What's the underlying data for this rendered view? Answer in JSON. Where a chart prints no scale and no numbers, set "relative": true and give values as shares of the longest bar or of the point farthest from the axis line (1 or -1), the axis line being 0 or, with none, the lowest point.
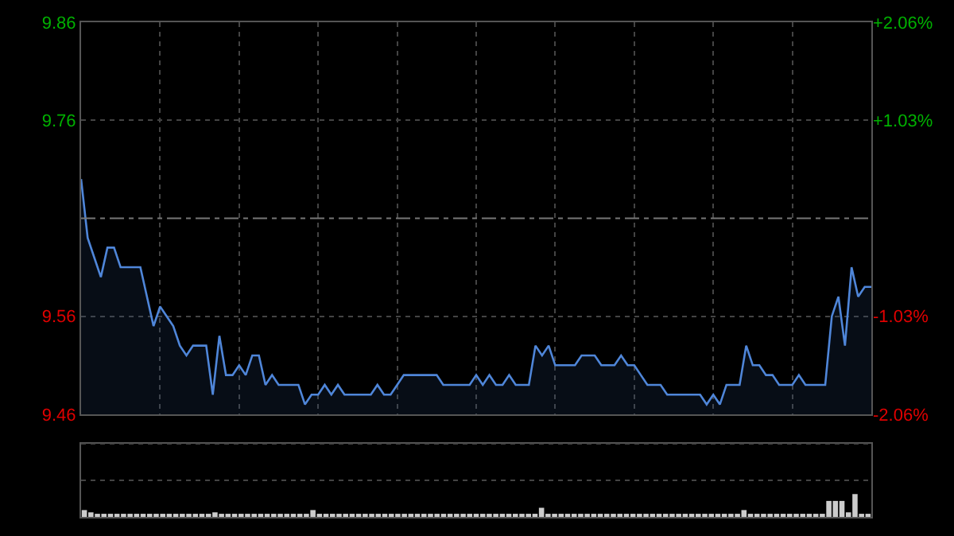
{
  "chart_data": [
    {
      "type": "area",
      "categories": [
        null,
        null,
        null,
        null,
        null,
        null,
        null,
        null,
        null,
        null,
        null,
        null,
        null,
        null,
        null,
        null,
        null,
        null,
        null,
        null,
        null,
        null,
        null,
        null,
        null,
        null,
        null,
        null,
        null,
        null,
        null,
        null,
        null,
        null,
        null,
        null,
        null,
        null,
        null,
        null,
        null,
        null,
        null,
        null,
        null,
        null,
        null,
        null,
        null,
        null,
        null,
        null,
        null,
        null,
        null,
        null,
        null,
        null,
        null,
        null,
        null,
        null,
        null,
        null,
        null,
        null,
        null,
        null,
        null,
        null,
        null,
        null,
        null,
        null,
        null,
        null,
        null,
        null,
        null,
        null,
        null,
        null,
        null,
        null,
        null,
        null,
        null,
        null,
        null,
        null,
        null,
        null,
        null,
        null,
        null,
        null,
        null,
        null,
        null,
        null,
        null,
        null,
        null,
        null,
        null,
        null,
        null,
        null,
        null,
        null,
        null,
        null,
        null,
        null,
        null,
        null,
        null,
        null,
        null,
        null,
        null
      ],
      "series": [
        {
          "color": "#4f86d9",
          "values": [
            9.7,
            9.64,
            9.62,
            9.6,
            9.63,
            9.63,
            9.61,
            9.61,
            9.61,
            9.61,
            9.58,
            9.55,
            9.57,
            9.56,
            9.55,
            9.53,
            9.52,
            9.53,
            9.53,
            9.53,
            9.48,
            9.54,
            9.5,
            9.5,
            9.51,
            9.5,
            9.52,
            9.52,
            9.49,
            9.5,
            9.49,
            9.49,
            9.49,
            9.49,
            9.47,
            9.48,
            9.48,
            9.49,
            9.48,
            9.49,
            9.48,
            9.48,
            9.48,
            9.48,
            9.48,
            9.49,
            9.48,
            9.48,
            9.49,
            9.5,
            9.5,
            9.5,
            9.5,
            9.5,
            9.5,
            9.49,
            9.49,
            9.49,
            9.49,
            9.49,
            9.5,
            9.49,
            9.5,
            9.49,
            9.49,
            9.5,
            9.49,
            9.49,
            9.49,
            9.53,
            9.52,
            9.53,
            9.51,
            9.51,
            9.51,
            9.51,
            9.52,
            9.52,
            9.52,
            9.51,
            9.51,
            9.51,
            9.52,
            9.51,
            9.51,
            9.5,
            9.49,
            9.49,
            9.49,
            9.48,
            9.48,
            9.48,
            9.48,
            9.48,
            9.48,
            9.47,
            9.48,
            9.47,
            9.49,
            9.49,
            9.49,
            9.53,
            9.51,
            9.51,
            9.5,
            9.5,
            9.49,
            9.49,
            9.49,
            9.5,
            9.49,
            9.49,
            9.49,
            9.49,
            9.56,
            9.58,
            9.53,
            9.61,
            9.58,
            9.59,
            9.59
          ]
        }
      ],
      "ylim": [
        9.46,
        9.86
      ],
      "yticks": [
        9.46,
        9.56,
        9.76,
        9.86
      ],
      "y2lim": [
        -2.06,
        2.06
      ],
      "y2ticks": [
        {
          "value": -2.06,
          "label": "-2.06%"
        },
        {
          "value": -1.03,
          "label": "-1.03%"
        },
        {
          "value": 1.03,
          "label": "+1.03%"
        },
        {
          "value": 2.06,
          "label": "+2.06%"
        }
      ],
      "grid": true,
      "ref_lines": [
        {
          "axis": "y",
          "value": 9.66,
          "line_style": "dashed"
        }
      ]
    },
    {
      "type": "bar",
      "relative": true,
      "color": "#cccccc",
      "categories": [
        null,
        null,
        null,
        null,
        null,
        null,
        null,
        null,
        null,
        null,
        null,
        null,
        null,
        null,
        null,
        null,
        null,
        null,
        null,
        null,
        null,
        null,
        null,
        null,
        null,
        null,
        null,
        null,
        null,
        null,
        null,
        null,
        null,
        null,
        null,
        null,
        null,
        null,
        null,
        null,
        null,
        null,
        null,
        null,
        null,
        null,
        null,
        null,
        null,
        null,
        null,
        null,
        null,
        null,
        null,
        null,
        null,
        null,
        null,
        null,
        null,
        null,
        null,
        null,
        null,
        null,
        null,
        null,
        null,
        null,
        null,
        null,
        null,
        null,
        null,
        null,
        null,
        null,
        null,
        null,
        null,
        null,
        null,
        null,
        null,
        null,
        null,
        null,
        null,
        null,
        null,
        null,
        null,
        null,
        null,
        null,
        null,
        null,
        null,
        null,
        null,
        null,
        null,
        null,
        null,
        null,
        null,
        null,
        null,
        null,
        null,
        null,
        null,
        null,
        null,
        null,
        null,
        null,
        null,
        null,
        null
      ],
      "values": [
        0.3,
        0.2,
        0.1,
        0.1,
        0.1,
        0.1,
        0.1,
        0.1,
        0.1,
        0.1,
        0.1,
        0.1,
        0.1,
        0.1,
        0.1,
        0.1,
        0.1,
        0.1,
        0.1,
        0.1,
        0.2,
        0.1,
        0.1,
        0.1,
        0.1,
        0.1,
        0.1,
        0.1,
        0.1,
        0.1,
        0.1,
        0.1,
        0.1,
        0.1,
        0.1,
        0.3,
        0.1,
        0.1,
        0.1,
        0.1,
        0.1,
        0.1,
        0.1,
        0.1,
        0.1,
        0.1,
        0.1,
        0.1,
        0.1,
        0.1,
        0.1,
        0.1,
        0.1,
        0.1,
        0.1,
        0.1,
        0.1,
        0.1,
        0.1,
        0.1,
        0.1,
        0.1,
        0.1,
        0.1,
        0.1,
        0.1,
        0.1,
        0.1,
        0.1,
        0.1,
        0.4,
        0.1,
        0.1,
        0.1,
        0.1,
        0.1,
        0.1,
        0.1,
        0.1,
        0.1,
        0.1,
        0.1,
        0.1,
        0.1,
        0.1,
        0.1,
        0.1,
        0.1,
        0.1,
        0.1,
        0.1,
        0.1,
        0.1,
        0.1,
        0.1,
        0.1,
        0.1,
        0.1,
        0.1,
        0.1,
        0.1,
        0.3,
        0.1,
        0.1,
        0.1,
        0.1,
        0.1,
        0.1,
        0.1,
        0.1,
        0.1,
        0.1,
        0.1,
        0.1,
        0.7,
        0.7,
        0.7,
        0.2,
        1.0,
        0.1,
        0.1
      ]
    }
  ]
}
